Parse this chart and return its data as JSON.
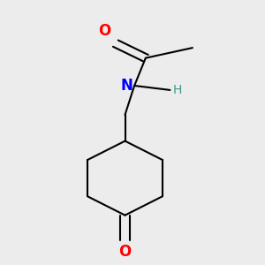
{
  "background_color": "#ececec",
  "bond_color": "#000000",
  "O_color": "#ff0000",
  "N_color": "#0000ff",
  "H_color": "#3a9a8a",
  "line_width": 1.5,
  "font_size_O": 12,
  "font_size_N": 12,
  "font_size_H": 10,
  "figsize": [
    3.0,
    3.0
  ],
  "dpi": 100,
  "xlim": [
    0.15,
    0.85
  ],
  "ylim": [
    0.05,
    0.95
  ]
}
